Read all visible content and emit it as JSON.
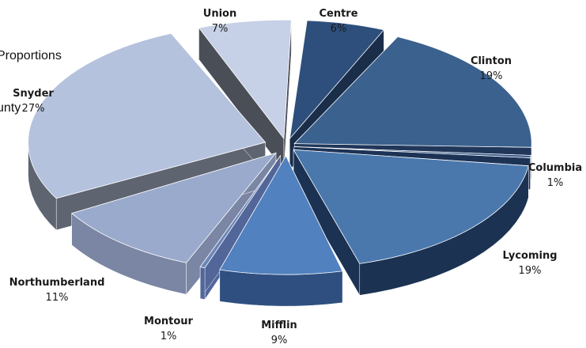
{
  "chart_data": {
    "type": "pie",
    "title_visible_fragment": [
      "Proportions",
      "unty"
    ],
    "categories": [
      "Centre",
      "Clinton",
      "Columbia",
      "Lycoming",
      "Mifflin",
      "Montour",
      "Northumberland",
      "Snyder",
      "Union"
    ],
    "values": [
      6,
      19,
      1,
      19,
      9,
      1,
      11,
      27,
      7
    ],
    "value_labels": [
      "6%",
      "19%",
      "1%",
      "19%",
      "9%",
      "1%",
      "11%",
      "27%",
      "7%"
    ],
    "colors": [
      "#2e4f7c",
      "#3b618f",
      "#35598a",
      "#4a78ad",
      "#5181bf",
      "#6c86b8",
      "#9aaacc",
      "#b4c2de",
      "#c6d0e6"
    ],
    "side_colors": [
      "#1a2e4a",
      "#21375a",
      "#1d3356",
      "#1c3253",
      "#2f4f80",
      "#52669a",
      "#7a86a3",
      "#5e6470",
      "#4a4e57"
    ],
    "exploded": true,
    "style": "3d"
  }
}
